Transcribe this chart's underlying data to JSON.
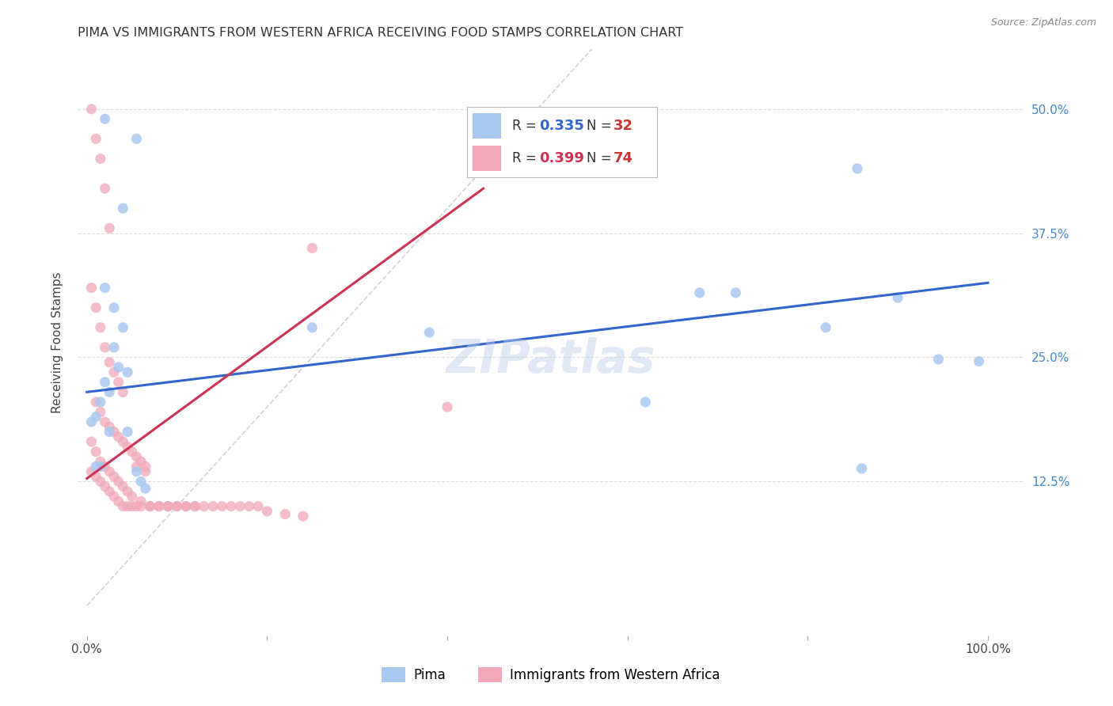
{
  "title": "PIMA VS IMMIGRANTS FROM WESTERN AFRICA RECEIVING FOOD STAMPS CORRELATION CHART",
  "source": "Source: ZipAtlas.com",
  "ylabel": "Receiving Food Stamps",
  "watermark": "ZIPatlas",
  "legend1_label": "Pima",
  "legend2_label": "Immigrants from Western Africa",
  "R1": 0.335,
  "N1": 32,
  "R2": 0.399,
  "N2": 74,
  "color1": "#a8c8f0",
  "color2": "#f0a8b8",
  "line1_color": "#3366cc",
  "line2_color": "#cc3355",
  "diagonal_color": "#cccccc",
  "xlim_min": -0.01,
  "xlim_max": 1.04,
  "ylim_min": -0.03,
  "ylim_max": 0.56,
  "xticks": [
    0.0,
    0.2,
    0.4,
    0.6,
    0.8,
    1.0
  ],
  "xticklabels": [
    "0.0%",
    "",
    "",
    "",
    "",
    "100.0%"
  ],
  "yticks": [
    0.125,
    0.25,
    0.375,
    0.5
  ],
  "right_yticklabels": [
    "12.5%",
    "25.0%",
    "37.5%",
    "50.0%"
  ],
  "title_fontsize": 11.5,
  "axis_label_fontsize": 11,
  "tick_fontsize": 11,
  "watermark_fontsize": 42,
  "background_color": "#ffffff",
  "grid_color": "#dddddd",
  "right_axis_color": "#4488cc",
  "pima_x": [
    0.02,
    0.055,
    0.04,
    0.02,
    0.03,
    0.04,
    0.03,
    0.035,
    0.045,
    0.02,
    0.025,
    0.015,
    0.01,
    0.005,
    0.38,
    0.62,
    0.68,
    0.72,
    0.82,
    0.855,
    0.86,
    0.9,
    0.945,
    0.99,
    0.25,
    0.055,
    0.065,
    0.025,
    0.045,
    0.06,
    0.015,
    0.01
  ],
  "pima_y": [
    0.49,
    0.47,
    0.4,
    0.32,
    0.3,
    0.28,
    0.26,
    0.24,
    0.235,
    0.225,
    0.215,
    0.205,
    0.19,
    0.185,
    0.275,
    0.205,
    0.315,
    0.315,
    0.28,
    0.44,
    0.138,
    0.31,
    0.248,
    0.246,
    0.28,
    0.135,
    0.118,
    0.175,
    0.175,
    0.125,
    0.14,
    0.14
  ],
  "africa_x": [
    0.005,
    0.01,
    0.015,
    0.02,
    0.025,
    0.005,
    0.01,
    0.015,
    0.02,
    0.025,
    0.03,
    0.035,
    0.04,
    0.01,
    0.015,
    0.02,
    0.025,
    0.03,
    0.035,
    0.04,
    0.045,
    0.05,
    0.055,
    0.06,
    0.065,
    0.005,
    0.01,
    0.015,
    0.02,
    0.025,
    0.03,
    0.035,
    0.04,
    0.045,
    0.05,
    0.055,
    0.06,
    0.07,
    0.08,
    0.09,
    0.1,
    0.11,
    0.12,
    0.13,
    0.14,
    0.15,
    0.16,
    0.17,
    0.18,
    0.19,
    0.2,
    0.22,
    0.24,
    0.005,
    0.01,
    0.015,
    0.02,
    0.025,
    0.03,
    0.035,
    0.04,
    0.045,
    0.05,
    0.06,
    0.07,
    0.08,
    0.09,
    0.1,
    0.11,
    0.12,
    0.4,
    0.25,
    0.065,
    0.055
  ],
  "africa_y": [
    0.5,
    0.47,
    0.45,
    0.42,
    0.38,
    0.32,
    0.3,
    0.28,
    0.26,
    0.245,
    0.235,
    0.225,
    0.215,
    0.205,
    0.195,
    0.185,
    0.18,
    0.175,
    0.17,
    0.165,
    0.16,
    0.155,
    0.15,
    0.145,
    0.14,
    0.135,
    0.13,
    0.125,
    0.12,
    0.115,
    0.11,
    0.105,
    0.1,
    0.1,
    0.1,
    0.1,
    0.1,
    0.1,
    0.1,
    0.1,
    0.1,
    0.1,
    0.1,
    0.1,
    0.1,
    0.1,
    0.1,
    0.1,
    0.1,
    0.1,
    0.095,
    0.092,
    0.09,
    0.165,
    0.155,
    0.145,
    0.14,
    0.135,
    0.13,
    0.125,
    0.12,
    0.115,
    0.11,
    0.105,
    0.1,
    0.1,
    0.1,
    0.1,
    0.1,
    0.1,
    0.2,
    0.36,
    0.135,
    0.14
  ],
  "line1_x0": 0.0,
  "line1_y0": 0.215,
  "line1_x1": 1.0,
  "line1_y1": 0.325,
  "line2_x0": 0.0,
  "line2_y0": 0.128,
  "line2_x1": 0.44,
  "line2_y1": 0.42
}
